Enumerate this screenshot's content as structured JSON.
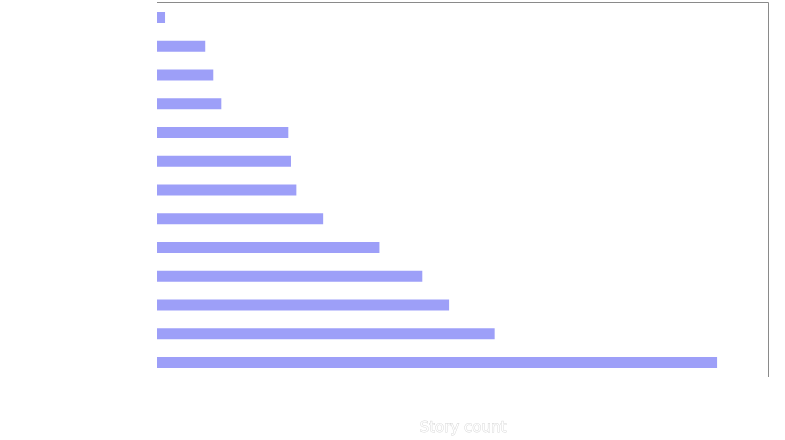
{
  "chart_data": {
    "type": "bar",
    "orientation": "horizontal",
    "title": "",
    "xlabel": "Story count",
    "ylabel": "",
    "xlim": [
      0,
      114
    ],
    "categories": [
      "",
      "",
      "",
      "",
      "",
      "",
      "",
      "",
      "",
      "",
      "",
      "",
      ""
    ],
    "values": [
      1.5,
      9,
      10.5,
      12,
      24.5,
      25,
      26,
      31,
      41.5,
      49.5,
      54.5,
      63,
      104.5
    ],
    "bar_color": "#9d9ff8",
    "grid": false,
    "legend": "none"
  }
}
